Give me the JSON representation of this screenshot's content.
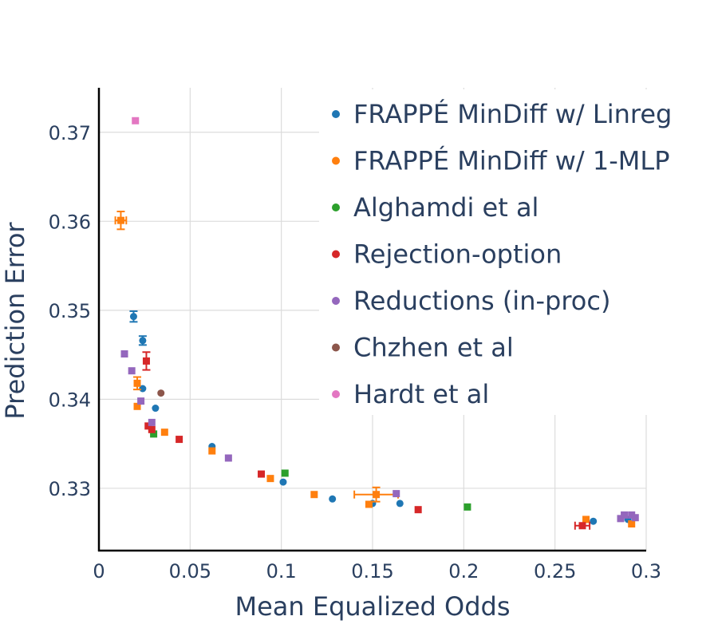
{
  "chart_data": {
    "type": "scatter",
    "title": "",
    "xlabel": "Mean Equalized Odds",
    "ylabel": "Prediction Error",
    "xlim": [
      0,
      0.3
    ],
    "ylim": [
      0.323,
      0.375
    ],
    "xticks": [
      0,
      0.05,
      0.1,
      0.15,
      0.2,
      0.25,
      0.3
    ],
    "xtick_labels": [
      "0",
      "0.05",
      "0.1",
      "0.15",
      "0.2",
      "0.25",
      "0.3"
    ],
    "yticks": [
      0.33,
      0.34,
      0.35,
      0.36,
      0.37
    ],
    "ytick_labels": [
      "0.33",
      "0.34",
      "0.35",
      "0.36",
      "0.37"
    ],
    "grid": true,
    "legend_position": "top-right",
    "series": [
      {
        "name": "FRAPPÉ MinDiff w/ Linreg",
        "color": "#1f77b4",
        "marker": "circle",
        "points": [
          {
            "x": 0.019,
            "y": 0.3493,
            "ey": 0.0006
          },
          {
            "x": 0.024,
            "y": 0.3466,
            "ey": 0.0005
          },
          {
            "x": 0.024,
            "y": 0.3412
          },
          {
            "x": 0.031,
            "y": 0.339
          },
          {
            "x": 0.062,
            "y": 0.3347
          },
          {
            "x": 0.101,
            "y": 0.3307
          },
          {
            "x": 0.128,
            "y": 0.3288
          },
          {
            "x": 0.15,
            "y": 0.3283
          },
          {
            "x": 0.165,
            "y": 0.3283
          },
          {
            "x": 0.271,
            "y": 0.3263
          },
          {
            "x": 0.29,
            "y": 0.3265
          }
        ]
      },
      {
        "name": "FRAPPÉ MinDiff w/ 1-MLP",
        "color": "#ff7f0e",
        "marker": "square",
        "points": [
          {
            "x": 0.012,
            "y": 0.3601,
            "ey": 0.001,
            "ex": 0.003
          },
          {
            "x": 0.021,
            "y": 0.3418,
            "ey": 0.0007
          },
          {
            "x": 0.021,
            "y": 0.3392
          },
          {
            "x": 0.036,
            "y": 0.3363
          },
          {
            "x": 0.062,
            "y": 0.3342
          },
          {
            "x": 0.094,
            "y": 0.3311
          },
          {
            "x": 0.118,
            "y": 0.3293
          },
          {
            "x": 0.148,
            "y": 0.3282
          },
          {
            "x": 0.152,
            "y": 0.3293,
            "ey": 0.0008,
            "ex": 0.012
          },
          {
            "x": 0.267,
            "y": 0.3265
          },
          {
            "x": 0.292,
            "y": 0.326
          }
        ]
      },
      {
        "name": "Alghamdi et al",
        "color": "#2ca02c",
        "marker": "square",
        "points": [
          {
            "x": 0.03,
            "y": 0.3361
          },
          {
            "x": 0.102,
            "y": 0.3317
          },
          {
            "x": 0.202,
            "y": 0.3279
          }
        ]
      },
      {
        "name": "Rejection-option",
        "color": "#d62728",
        "marker": "square",
        "points": [
          {
            "x": 0.026,
            "y": 0.3443,
            "ey": 0.001
          },
          {
            "x": 0.027,
            "y": 0.337
          },
          {
            "x": 0.029,
            "y": 0.3366
          },
          {
            "x": 0.044,
            "y": 0.3355
          },
          {
            "x": 0.089,
            "y": 0.3316
          },
          {
            "x": 0.175,
            "y": 0.3276
          },
          {
            "x": 0.265,
            "y": 0.3258,
            "ex": 0.004
          }
        ]
      },
      {
        "name": "Reductions (in-proc)",
        "color": "#9467bd",
        "marker": "square",
        "points": [
          {
            "x": 0.014,
            "y": 0.3451
          },
          {
            "x": 0.018,
            "y": 0.3432
          },
          {
            "x": 0.023,
            "y": 0.3398
          },
          {
            "x": 0.029,
            "y": 0.3374
          },
          {
            "x": 0.071,
            "y": 0.3334
          },
          {
            "x": 0.163,
            "y": 0.3294
          },
          {
            "x": 0.286,
            "y": 0.3266
          },
          {
            "x": 0.288,
            "y": 0.327
          },
          {
            "x": 0.292,
            "y": 0.327
          },
          {
            "x": 0.294,
            "y": 0.3267
          }
        ]
      },
      {
        "name": "Chzhen et al",
        "color": "#8c564b",
        "marker": "circle",
        "points": [
          {
            "x": 0.034,
            "y": 0.3407
          }
        ]
      },
      {
        "name": "Hardt et al",
        "color": "#e377c2",
        "marker": "square",
        "points": [
          {
            "x": 0.02,
            "y": 0.3713
          }
        ]
      }
    ]
  }
}
